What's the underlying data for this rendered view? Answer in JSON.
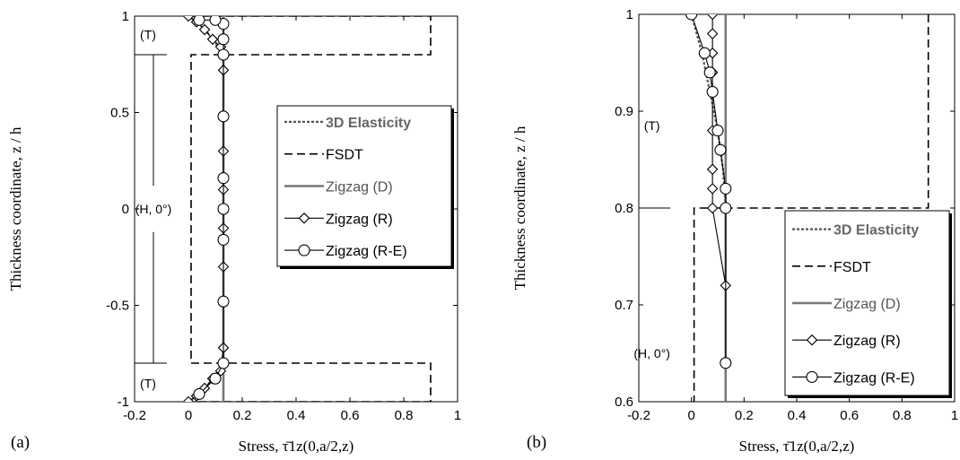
{
  "chart_data": [
    {
      "type": "line",
      "panel_label": "(a)",
      "xlabel": "Stress,  τ̄1z(0,a/2,z)",
      "ylabel": "Thickness coordinate, z / h",
      "xlim": [
        -0.2,
        1
      ],
      "ylim": [
        -1,
        1
      ],
      "xticks": [
        "-0.2",
        "0",
        "0.2",
        "0.4",
        "0.6",
        "0.8",
        "1"
      ],
      "xtick_values": [
        -0.2,
        0,
        0.2,
        0.4,
        0.6,
        0.8,
        1
      ],
      "yticks": [
        "-1",
        "-0.5",
        "0",
        "0.5",
        "1"
      ],
      "ytick_values": [
        -1,
        -0.5,
        0,
        0.5,
        1
      ],
      "legend_position": "upper-right",
      "layer_labels": [
        {
          "text": "(T)",
          "x": -0.15,
          "y": 0.905
        },
        {
          "text": "(H, 0°)",
          "x": -0.13,
          "y": 0.0
        },
        {
          "text": "(T)",
          "x": -0.15,
          "y": -0.905
        }
      ],
      "interfaces": [
        0.8,
        -0.8
      ],
      "series": [
        {
          "name": "3D Elasticity",
          "style": "dotted",
          "color": "#555555",
          "x": [
            0.0,
            0.04,
            0.08,
            0.11,
            0.13,
            0.13,
            0.13,
            0.11,
            0.08,
            0.04,
            0.0
          ],
          "y": [
            -1,
            -0.96,
            -0.9,
            -0.84,
            -0.8,
            0,
            0.8,
            0.84,
            0.9,
            0.96,
            1
          ]
        },
        {
          "name": "FSDT",
          "style": "dashed",
          "color": "#000000",
          "x": [
            0.0,
            0.9,
            0.9,
            0.01,
            0.01,
            0.9,
            0.9,
            0.0
          ],
          "y": [
            1,
            1,
            0.8,
            0.8,
            -0.8,
            -0.8,
            -1,
            -1
          ]
        },
        {
          "name": "Zigzag (D)",
          "style": "solid-thick",
          "color": "#777777",
          "x": [
            0.13,
            0.13
          ],
          "y": [
            -1,
            1
          ]
        },
        {
          "name": "Zigzag (R)",
          "style": "diamond",
          "color": "#000000",
          "x": [
            0.0,
            0.03,
            0.06,
            0.09,
            0.12,
            0.13,
            0.13,
            0.13,
            0.13,
            0.13,
            0.13,
            0.13,
            0.13,
            0.13,
            0.12,
            0.09,
            0.06,
            0.03,
            0.0
          ],
          "y": [
            -1,
            -0.97,
            -0.93,
            -0.88,
            -0.84,
            -0.72,
            -0.48,
            -0.3,
            -0.1,
            0.1,
            0.3,
            0.48,
            0.72,
            0.8,
            0.84,
            0.88,
            0.93,
            0.97,
            1
          ]
        },
        {
          "name": "Zigzag (R-E)",
          "style": "circle",
          "color": "#000000",
          "x": [
            0.04,
            0.1,
            0.13,
            0.13,
            0.13,
            0.13,
            0.13,
            0.13,
            0.13,
            0.13,
            0.13,
            0.1,
            0.04
          ],
          "y": [
            -0.96,
            -0.88,
            -0.8,
            -0.48,
            -0.16,
            0.0,
            0.16,
            0.48,
            0.8,
            0.88,
            0.96,
            0.98,
            0.98
          ]
        }
      ]
    },
    {
      "type": "line",
      "panel_label": "(b)",
      "xlabel": "Stress,  τ̄1z(0,a/2,z)",
      "ylabel": "Thickness coordinate, z / h",
      "xlim": [
        -0.2,
        1
      ],
      "ylim": [
        0.6,
        1
      ],
      "xticks": [
        "-0.2",
        "0",
        "0.2",
        "0.4",
        "0.6",
        "0.8",
        "1"
      ],
      "xtick_values": [
        -0.2,
        0,
        0.2,
        0.4,
        0.6,
        0.8,
        1
      ],
      "yticks": [
        "0.6",
        "0.7",
        "0.8",
        "0.9",
        "1"
      ],
      "ytick_values": [
        0.6,
        0.7,
        0.8,
        0.9,
        1
      ],
      "legend_position": "lower-right",
      "layer_labels": [
        {
          "text": "(T)",
          "x": -0.15,
          "y": 0.885
        },
        {
          "text": "(H, 0°)",
          "x": -0.15,
          "y": 0.65
        }
      ],
      "interfaces": [
        0.8
      ],
      "series": [
        {
          "name": "3D Elasticity",
          "style": "dotted",
          "color": "#555555",
          "x": [
            0.0,
            0.04,
            0.07,
            0.1,
            0.12,
            0.13,
            0.13
          ],
          "y": [
            1,
            0.96,
            0.92,
            0.88,
            0.84,
            0.8,
            0.6
          ]
        },
        {
          "name": "FSDT",
          "style": "dashed",
          "color": "#000000",
          "x": [
            0.9,
            0.9,
            0.01,
            0.01
          ],
          "y": [
            1,
            0.8,
            0.8,
            0.6
          ]
        },
        {
          "name": "Zigzag (D)",
          "style": "solid-thick",
          "color": "#777777",
          "x": [
            0.13,
            0.13
          ],
          "y": [
            0.6,
            1
          ]
        },
        {
          "name": "Zigzag (R)",
          "style": "diamond",
          "color": "#000000",
          "x": [
            0.08,
            0.08,
            0.08,
            0.08,
            0.08,
            0.08,
            0.08,
            0.08,
            0.08,
            0.13
          ],
          "y": [
            1,
            0.98,
            0.96,
            0.94,
            0.92,
            0.88,
            0.84,
            0.82,
            0.8,
            0.72
          ]
        },
        {
          "name": "Zigzag (R-E)",
          "style": "circle",
          "color": "#000000",
          "x": [
            0.0,
            0.05,
            0.07,
            0.08,
            0.1,
            0.11,
            0.13,
            0.13,
            0.13
          ],
          "y": [
            1,
            0.96,
            0.94,
            0.92,
            0.88,
            0.86,
            0.82,
            0.8,
            0.64
          ]
        }
      ]
    }
  ]
}
